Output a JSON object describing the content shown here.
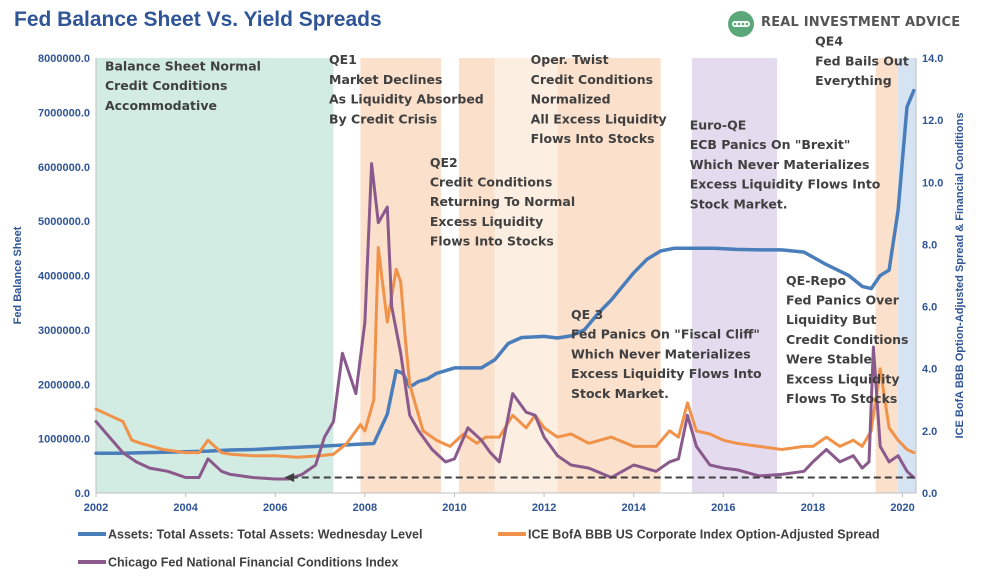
{
  "page": {
    "title": "Fed Balance Sheet Vs. Yield Spreads",
    "logo_text": "REAL INVESTMENT ADVICE"
  },
  "colors": {
    "title": "#2f5597",
    "balance_sheet": "#4a7ebb",
    "bbb_spread": "#f0924a",
    "nfci": "#8a5a8c",
    "band_green": "#d3ece3",
    "band_orange": "#fbe0cc",
    "band_purple": "#e5dbee",
    "band_blue": "#d6e3f3",
    "logo_green": "#5aa77a"
  },
  "chart_data": {
    "type": "line",
    "x_range": [
      2002.0,
      2020.3
    ],
    "x_ticks": [
      "2002",
      "2004",
      "2006",
      "2008",
      "2010",
      "2012",
      "2014",
      "2016",
      "2018",
      "2020"
    ],
    "y_left": {
      "label": "Fed Balance Sheet",
      "ylim": [
        0,
        8000000
      ],
      "ticks": [
        "0.0",
        "1000000.0",
        "2000000.0",
        "3000000.0",
        "4000000.0",
        "5000000.0",
        "6000000.0",
        "7000000.0",
        "8000000.0"
      ]
    },
    "y_right": {
      "label": "ICE BofA BBB Option-Adjusted Spread & Financial Conditions",
      "ylim": [
        0,
        14
      ],
      "ticks": [
        "0.0",
        "2.0",
        "4.0",
        "6.0",
        "8.0",
        "10.0",
        "12.0",
        "14.0"
      ]
    },
    "bands": [
      {
        "start": 2002.0,
        "end": 2007.3,
        "kind": "green"
      },
      {
        "start": 2007.9,
        "end": 2009.7,
        "kind": "orange"
      },
      {
        "start": 2010.1,
        "end": 2010.9,
        "kind": "orange"
      },
      {
        "start": 2010.9,
        "end": 2012.3,
        "kind": "light_orange"
      },
      {
        "start": 2012.3,
        "end": 2014.6,
        "kind": "orange"
      },
      {
        "start": 2015.3,
        "end": 2017.2,
        "kind": "purple"
      },
      {
        "start": 2019.4,
        "end": 2019.9,
        "kind": "orange"
      },
      {
        "start": 2019.9,
        "end": 2020.3,
        "kind": "blue"
      }
    ],
    "series": [
      {
        "name": "Assets: Total Assets: Total Assets: Wednesday Level",
        "axis": "left",
        "x": [
          2002.0,
          2002.5,
          2003.0,
          2003.5,
          2004.0,
          2004.5,
          2005.0,
          2005.5,
          2006.0,
          2006.5,
          2007.0,
          2007.5,
          2007.9,
          2008.2,
          2008.5,
          2008.7,
          2008.85,
          2009.0,
          2009.2,
          2009.4,
          2009.6,
          2009.8,
          2010.0,
          2010.3,
          2010.6,
          2010.9,
          2011.2,
          2011.5,
          2011.8,
          2012.0,
          2012.3,
          2012.6,
          2012.9,
          2013.2,
          2013.5,
          2013.8,
          2014.0,
          2014.3,
          2014.6,
          2014.9,
          2015.3,
          2015.8,
          2016.3,
          2016.8,
          2017.3,
          2017.8,
          2018.3,
          2018.8,
          2019.1,
          2019.3,
          2019.5,
          2019.7,
          2019.9,
          2020.1,
          2020.25
        ],
        "values": [
          730000,
          730000,
          740000,
          750000,
          760000,
          770000,
          790000,
          800000,
          820000,
          840000,
          860000,
          880000,
          900000,
          910000,
          1450000,
          2250000,
          2200000,
          1950000,
          2050000,
          2100000,
          2200000,
          2250000,
          2300000,
          2300000,
          2300000,
          2450000,
          2750000,
          2860000,
          2870000,
          2880000,
          2850000,
          2890000,
          3000000,
          3300000,
          3550000,
          3850000,
          4050000,
          4300000,
          4450000,
          4500000,
          4500000,
          4500000,
          4480000,
          4470000,
          4470000,
          4430000,
          4200000,
          4000000,
          3800000,
          3760000,
          4000000,
          4100000,
          5200000,
          7100000,
          7400000
        ]
      },
      {
        "name": "ICE BofA BBB US Corporate Index Option-Adjusted Spread",
        "axis": "right",
        "x": [
          2002.0,
          2002.3,
          2002.6,
          2002.8,
          2003.0,
          2003.5,
          2004.0,
          2004.3,
          2004.5,
          2004.8,
          2005.0,
          2005.5,
          2006.0,
          2006.5,
          2007.0,
          2007.3,
          2007.6,
          2007.9,
          2008.0,
          2008.2,
          2008.3,
          2008.5,
          2008.7,
          2008.8,
          2008.9,
          2009.0,
          2009.1,
          2009.3,
          2009.6,
          2009.9,
          2010.2,
          2010.5,
          2010.7,
          2011.0,
          2011.3,
          2011.6,
          2011.8,
          2012.0,
          2012.3,
          2012.6,
          2013.0,
          2013.5,
          2014.0,
          2014.5,
          2014.8,
          2015.0,
          2015.2,
          2015.4,
          2015.7,
          2016.0,
          2016.3,
          2016.8,
          2017.3,
          2017.8,
          2018.0,
          2018.3,
          2018.6,
          2018.9,
          2019.1,
          2019.3,
          2019.5,
          2019.7,
          2019.9,
          2020.1,
          2020.25
        ],
        "values": [
          2.7,
          2.5,
          2.3,
          1.7,
          1.6,
          1.4,
          1.3,
          1.3,
          1.7,
          1.3,
          1.25,
          1.2,
          1.2,
          1.15,
          1.2,
          1.25,
          1.6,
          2.2,
          2.0,
          3.0,
          7.9,
          5.5,
          7.2,
          6.8,
          5.0,
          3.5,
          3.0,
          2.0,
          1.7,
          1.5,
          1.9,
          1.6,
          1.8,
          1.8,
          2.5,
          2.1,
          2.5,
          2.1,
          1.8,
          1.9,
          1.6,
          1.8,
          1.5,
          1.5,
          2.0,
          1.8,
          2.9,
          2.0,
          1.9,
          1.7,
          1.6,
          1.5,
          1.4,
          1.5,
          1.5,
          1.8,
          1.5,
          1.7,
          1.5,
          2.0,
          4.0,
          2.1,
          1.7,
          1.4,
          1.3
        ]
      },
      {
        "name": "Chicago Fed National Financial Conditions Index",
        "axis": "right",
        "x": [
          2002.0,
          2002.3,
          2002.6,
          2002.9,
          2003.2,
          2003.6,
          2004.0,
          2004.3,
          2004.5,
          2004.8,
          2005.0,
          2005.5,
          2006.0,
          2006.3,
          2006.6,
          2006.9,
          2007.1,
          2007.3,
          2007.5,
          2007.8,
          2008.0,
          2008.15,
          2008.3,
          2008.5,
          2008.6,
          2008.8,
          2008.9,
          2009.0,
          2009.2,
          2009.5,
          2009.8,
          2010.0,
          2010.3,
          2010.6,
          2010.8,
          2011.0,
          2011.3,
          2011.6,
          2011.8,
          2012.0,
          2012.3,
          2012.6,
          2013.0,
          2013.5,
          2014.0,
          2014.5,
          2014.8,
          2015.0,
          2015.2,
          2015.4,
          2015.7,
          2016.0,
          2016.3,
          2016.8,
          2017.3,
          2017.8,
          2018.0,
          2018.3,
          2018.6,
          2018.9,
          2019.1,
          2019.25,
          2019.35,
          2019.5,
          2019.7,
          2019.9,
          2020.1,
          2020.25
        ],
        "values": [
          2.3,
          1.8,
          1.3,
          1.0,
          0.8,
          0.7,
          0.5,
          0.5,
          1.1,
          0.7,
          0.6,
          0.5,
          0.45,
          0.45,
          0.6,
          0.9,
          1.8,
          2.3,
          4.5,
          3.2,
          5.5,
          10.6,
          8.7,
          9.2,
          6.0,
          4.5,
          3.5,
          2.5,
          2.0,
          1.4,
          1.0,
          1.1,
          2.1,
          1.7,
          1.3,
          1.0,
          3.2,
          2.6,
          2.5,
          1.8,
          1.2,
          0.9,
          0.8,
          0.5,
          0.9,
          0.7,
          1.0,
          1.1,
          2.5,
          1.5,
          0.9,
          0.8,
          0.75,
          0.55,
          0.6,
          0.7,
          1.0,
          1.4,
          1.0,
          1.2,
          0.8,
          1.0,
          4.7,
          1.5,
          1.0,
          1.2,
          0.7,
          0.5
        ]
      }
    ],
    "annotations": [
      {
        "x": 2002.2,
        "y": 13.6,
        "lines": [
          "Balance Sheet Normal",
          "Credit Conditions",
          "Accommodative"
        ]
      },
      {
        "x": 2007.2,
        "y": 13.8,
        "lines": [
          "QE1",
          "Market Declines",
          "As Liquidity Absorbed",
          "By Credit Crisis"
        ]
      },
      {
        "x": 2009.45,
        "y": 10.5,
        "lines": [
          "QE2",
          "Credit Conditions",
          "Returning To Normal",
          "Excess Liquidity",
          "Flows Into Stocks"
        ]
      },
      {
        "x": 2011.7,
        "y": 13.8,
        "lines": [
          "Oper. Twist",
          "Credit Conditions",
          "Normalized",
          "All Excess Liquidity",
          "Flows Into Stocks"
        ]
      },
      {
        "x": 2012.6,
        "y": 5.6,
        "lines": [
          "QE 3",
          "Fed Panics On \"Fiscal Cliff\"",
          "Which Never Materializes",
          "Excess Liquidity Flows Into",
          "Stock Market."
        ]
      },
      {
        "x": 2015.25,
        "y": 11.7,
        "lines": [
          "Euro-QE",
          "ECB Panics On \"Brexit\"",
          "Which Never Materializes",
          "Excess Liquidity Flows Into",
          "Stock Market."
        ]
      },
      {
        "x": 2017.4,
        "y": 6.7,
        "lines": [
          "QE-Repo",
          "Fed Panics Over",
          "Liquidity But",
          "Credit Conditions",
          "Were Stable",
          "Excess Liquidity",
          "Flows To Stocks"
        ]
      },
      {
        "x": 2018.05,
        "y": 14.4,
        "lines": [
          "QE4",
          "Fed Bails Out",
          "Everything"
        ]
      }
    ],
    "arrow": {
      "x_from": 2020.25,
      "x_to": 2006.2,
      "y": 0.5
    },
    "legend": {
      "placement": "bottom"
    }
  }
}
